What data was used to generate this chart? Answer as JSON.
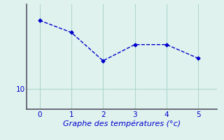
{
  "x": [
    0,
    1,
    2,
    3,
    4,
    5
  ],
  "y": [
    18.5,
    17.0,
    13.5,
    15.5,
    15.5,
    13.8
  ],
  "line_color": "#0000cc",
  "marker": "D",
  "marker_size": 2.5,
  "linestyle": "--",
  "linewidth": 1.0,
  "xlabel": "Graphe des températures (°c)",
  "xlabel_fontsize": 8,
  "ytick_label": "10",
  "ytick_value": 10,
  "xlim": [
    -0.4,
    5.6
  ],
  "ylim": [
    7.5,
    20.5
  ],
  "background_color": "#dff2ee",
  "grid_color": "#aed6cc",
  "spine_color": "#555566",
  "tick_color": "#0000cc",
  "tick_fontsize": 7.5,
  "xlabel_color": "#0000cc"
}
